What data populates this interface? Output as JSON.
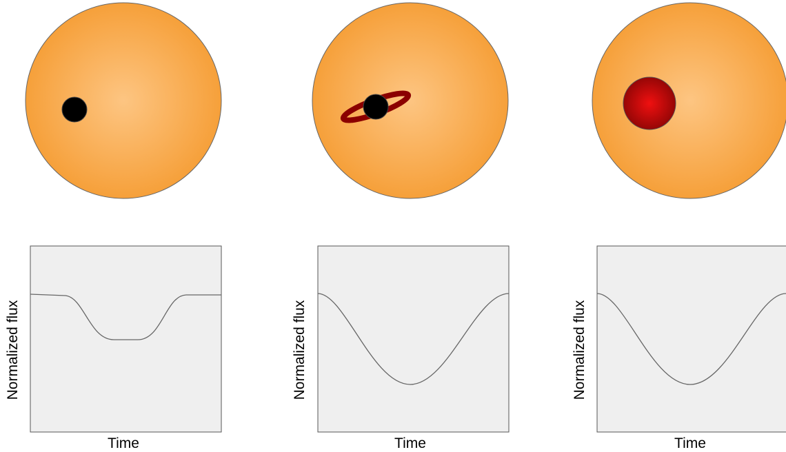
{
  "panels": [
    {
      "y_label": "Normalized flux",
      "x_label": "Time"
    },
    {
      "y_label": "Normalized flux",
      "x_label": "Time"
    },
    {
      "y_label": "Normalized flux",
      "x_label": "Time"
    }
  ]
}
